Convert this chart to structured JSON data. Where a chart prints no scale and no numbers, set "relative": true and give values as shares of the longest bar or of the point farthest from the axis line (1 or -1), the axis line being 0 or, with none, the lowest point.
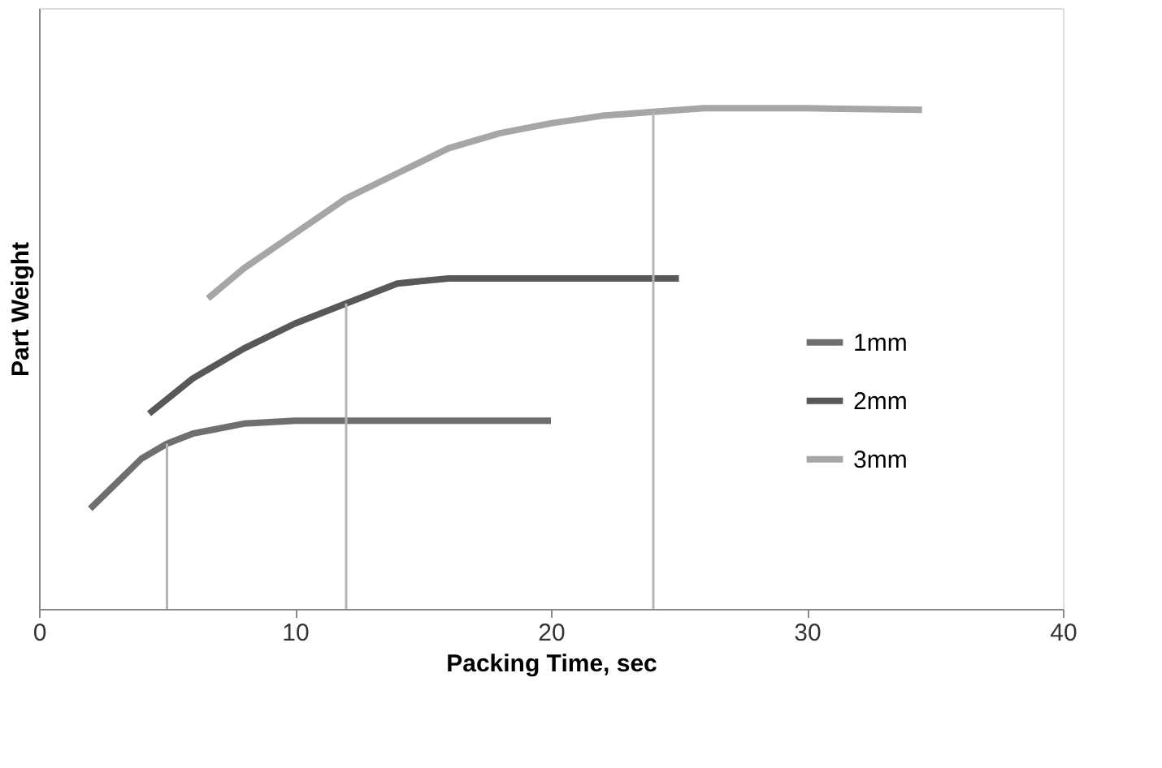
{
  "chart_data": {
    "type": "line",
    "xlabel": "Packing Time, sec",
    "ylabel": "Part Weight",
    "relative": true,
    "xlim": [
      0,
      40
    ],
    "xticks": [
      0,
      10,
      20,
      30,
      40
    ],
    "grid": false,
    "legend": "right",
    "tick_labels": "x",
    "marker": "none",
    "line_style": "solid",
    "series": [
      {
        "name": "1mm",
        "color": "#6f6f6f",
        "x": [
          2,
          3,
          4,
          5,
          6,
          8,
          10,
          12,
          15,
          20
        ],
        "values": [
          0.2,
          0.25,
          0.3,
          0.33,
          0.35,
          0.37,
          0.376,
          0.376,
          0.376,
          0.376
        ]
      },
      {
        "name": "2mm",
        "color": "#585858",
        "x": [
          4.3,
          6,
          8,
          10,
          12,
          14,
          16,
          20,
          25
        ],
        "values": [
          0.39,
          0.46,
          0.52,
          0.57,
          0.61,
          0.65,
          0.66,
          0.66,
          0.66
        ]
      },
      {
        "name": "3mm",
        "color": "#a6a6a6",
        "x": [
          6.6,
          8,
          10,
          12,
          14,
          16,
          18,
          20,
          22,
          24,
          26,
          30,
          34.5
        ],
        "values": [
          0.62,
          0.68,
          0.75,
          0.82,
          0.87,
          0.92,
          0.95,
          0.97,
          0.985,
          0.993,
          1,
          1,
          0.997
        ]
      }
    ],
    "ref_lines": [
      {
        "axis": "x",
        "value": 5,
        "label": null,
        "color": "#b4b4b4"
      },
      {
        "axis": "x",
        "value": 12,
        "label": null,
        "color": "#b4b4b4"
      },
      {
        "axis": "x",
        "value": 24,
        "label": null,
        "color": "#b4b4b4"
      }
    ]
  }
}
